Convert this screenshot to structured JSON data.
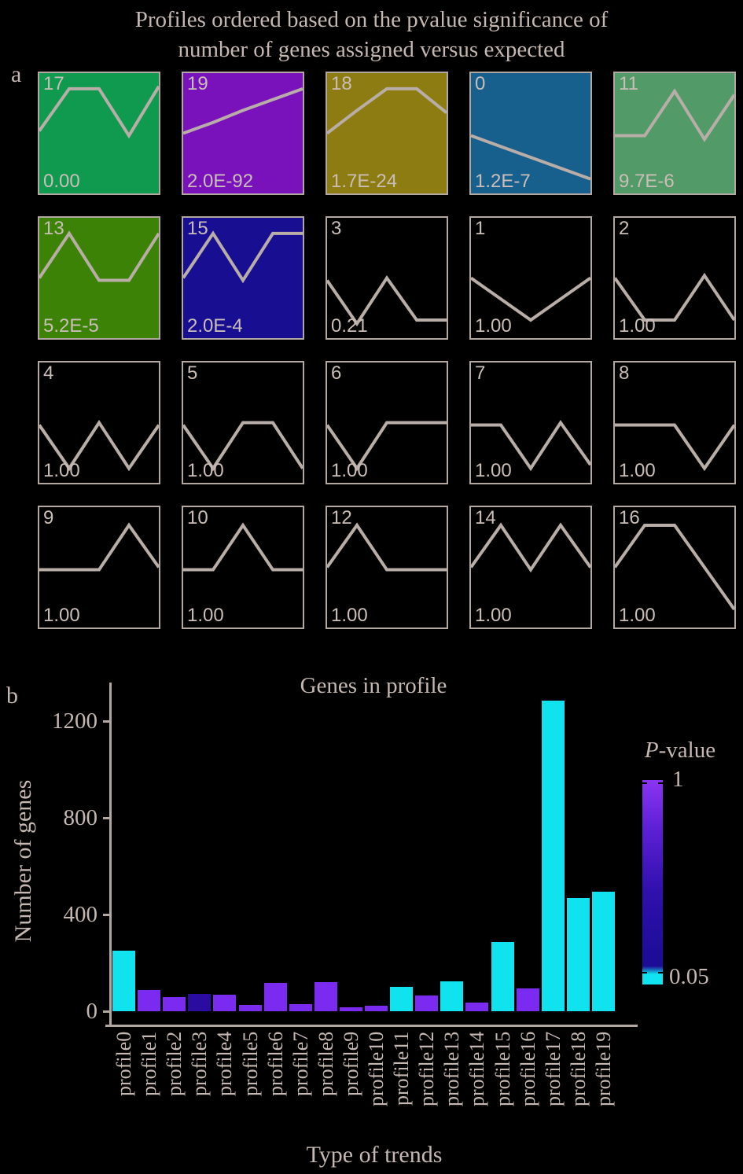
{
  "title": {
    "line1": "Profiles ordered based on the pvalue significance of",
    "line2": "number of genes assigned versus expected"
  },
  "panel_a": {
    "label": "a",
    "profiles": [
      {
        "id": "17",
        "pvalue": "0.00",
        "bg": "#109a50",
        "shape": [
          0.48,
          0.13,
          0.13,
          0.52,
          0.11
        ]
      },
      {
        "id": "19",
        "pvalue": "2.0E-92",
        "bg": "#7a12bc",
        "shape": [
          0.5,
          0.41,
          0.31,
          0.22,
          0.13
        ]
      },
      {
        "id": "18",
        "pvalue": "1.7E-24",
        "bg": "#8c7c12",
        "shape": [
          0.5,
          0.31,
          0.13,
          0.13,
          0.33
        ]
      },
      {
        "id": "0",
        "pvalue": "1.2E-7",
        "bg": "#175f8d",
        "shape": [
          0.52,
          0.61,
          0.7,
          0.79,
          0.88
        ]
      },
      {
        "id": "11",
        "pvalue": "9.7E-6",
        "bg": "#529a67",
        "shape": [
          0.52,
          0.52,
          0.15,
          0.55,
          0.18
        ]
      },
      {
        "id": "13",
        "pvalue": "5.2E-5",
        "bg": "#3b8207",
        "shape": [
          0.5,
          0.13,
          0.52,
          0.52,
          0.13
        ]
      },
      {
        "id": "15",
        "pvalue": "2.0E-4",
        "bg": "#170e92",
        "shape": [
          0.5,
          0.13,
          0.52,
          0.13,
          0.13
        ]
      },
      {
        "id": "3",
        "pvalue": "0.21",
        "bg": "#000000",
        "shape": [
          0.52,
          0.88,
          0.5,
          0.85,
          0.85
        ]
      },
      {
        "id": "1",
        "pvalue": "1.00",
        "bg": "#000000",
        "shape": [
          0.5,
          0.675,
          0.85,
          0.675,
          0.5
        ]
      },
      {
        "id": "2",
        "pvalue": "1.00",
        "bg": "#000000",
        "shape": [
          0.5,
          0.85,
          0.85,
          0.48,
          0.85
        ]
      },
      {
        "id": "4",
        "pvalue": "1.00",
        "bg": "#000000",
        "shape": [
          0.52,
          0.88,
          0.5,
          0.88,
          0.52
        ]
      },
      {
        "id": "5",
        "pvalue": "1.00",
        "bg": "#000000",
        "shape": [
          0.52,
          0.88,
          0.5,
          0.5,
          0.88
        ]
      },
      {
        "id": "6",
        "pvalue": "1.00",
        "bg": "#000000",
        "shape": [
          0.52,
          0.88,
          0.5,
          0.5,
          0.5
        ]
      },
      {
        "id": "7",
        "pvalue": "1.00",
        "bg": "#000000",
        "shape": [
          0.52,
          0.52,
          0.88,
          0.5,
          0.85
        ]
      },
      {
        "id": "8",
        "pvalue": "1.00",
        "bg": "#000000",
        "shape": [
          0.52,
          0.52,
          0.52,
          0.88,
          0.52
        ]
      },
      {
        "id": "9",
        "pvalue": "1.00",
        "bg": "#000000",
        "shape": [
          0.52,
          0.52,
          0.52,
          0.15,
          0.5
        ]
      },
      {
        "id": "10",
        "pvalue": "1.00",
        "bg": "#000000",
        "shape": [
          0.52,
          0.52,
          0.15,
          0.52,
          0.52
        ]
      },
      {
        "id": "12",
        "pvalue": "1.00",
        "bg": "#000000",
        "shape": [
          0.5,
          0.15,
          0.52,
          0.52,
          0.52
        ]
      },
      {
        "id": "14",
        "pvalue": "1.00",
        "bg": "#000000",
        "shape": [
          0.5,
          0.15,
          0.52,
          0.15,
          0.5
        ]
      },
      {
        "id": "16",
        "pvalue": "1.00",
        "bg": "#000000",
        "shape": [
          0.5,
          0.15,
          0.15,
          0.5,
          0.85
        ]
      }
    ]
  },
  "panel_b": {
    "label": "b",
    "colorbar": {
      "title_italic": "P",
      "title_rest": "-value",
      "top_label": "1",
      "bottom_label": "0.05"
    }
  },
  "chart_data": {
    "type": "bar",
    "title": "Genes in profile",
    "xlabel": "Type of trends",
    "ylabel": "Number of genes",
    "categories": [
      "profile0",
      "profile1",
      "profile2",
      "profile3",
      "profile4",
      "profile5",
      "profile6",
      "profile7",
      "profile8",
      "profile9",
      "profile10",
      "profile11",
      "profile12",
      "profile13",
      "profile14",
      "profile15",
      "profile16",
      "profile17",
      "profile18",
      "profile19"
    ],
    "values": [
      250,
      88,
      59,
      72,
      68,
      26,
      117,
      29,
      121,
      16,
      23,
      101,
      65,
      124,
      36,
      286,
      94,
      1285,
      468,
      494
    ],
    "pvalue_class": [
      "sig",
      "ns",
      "ns",
      "mid",
      "ns",
      "ns",
      "ns",
      "ns",
      "ns",
      "ns",
      "ns",
      "sig",
      "ns",
      "sig",
      "ns",
      "sig",
      "ns",
      "sig",
      "sig",
      "sig"
    ],
    "yticks": [
      "0",
      "400",
      "800",
      "1200"
    ],
    "ylim": [
      0,
      1350
    ],
    "grid": false,
    "legend_position": "right-colorbar"
  },
  "colors": {
    "significant": "#10e2ee",
    "nonsignificant": "#7b2bf0",
    "intermediate": "#2a0da0",
    "colorbar_top": "#8a35f2",
    "colorbar_mid": "#1c0c96",
    "colorbar_bottom": "#10e4f0",
    "axis": "#b3a7a1",
    "text": "#c5b7b1",
    "profile_line": "#b9ada7",
    "background": "#000000"
  }
}
